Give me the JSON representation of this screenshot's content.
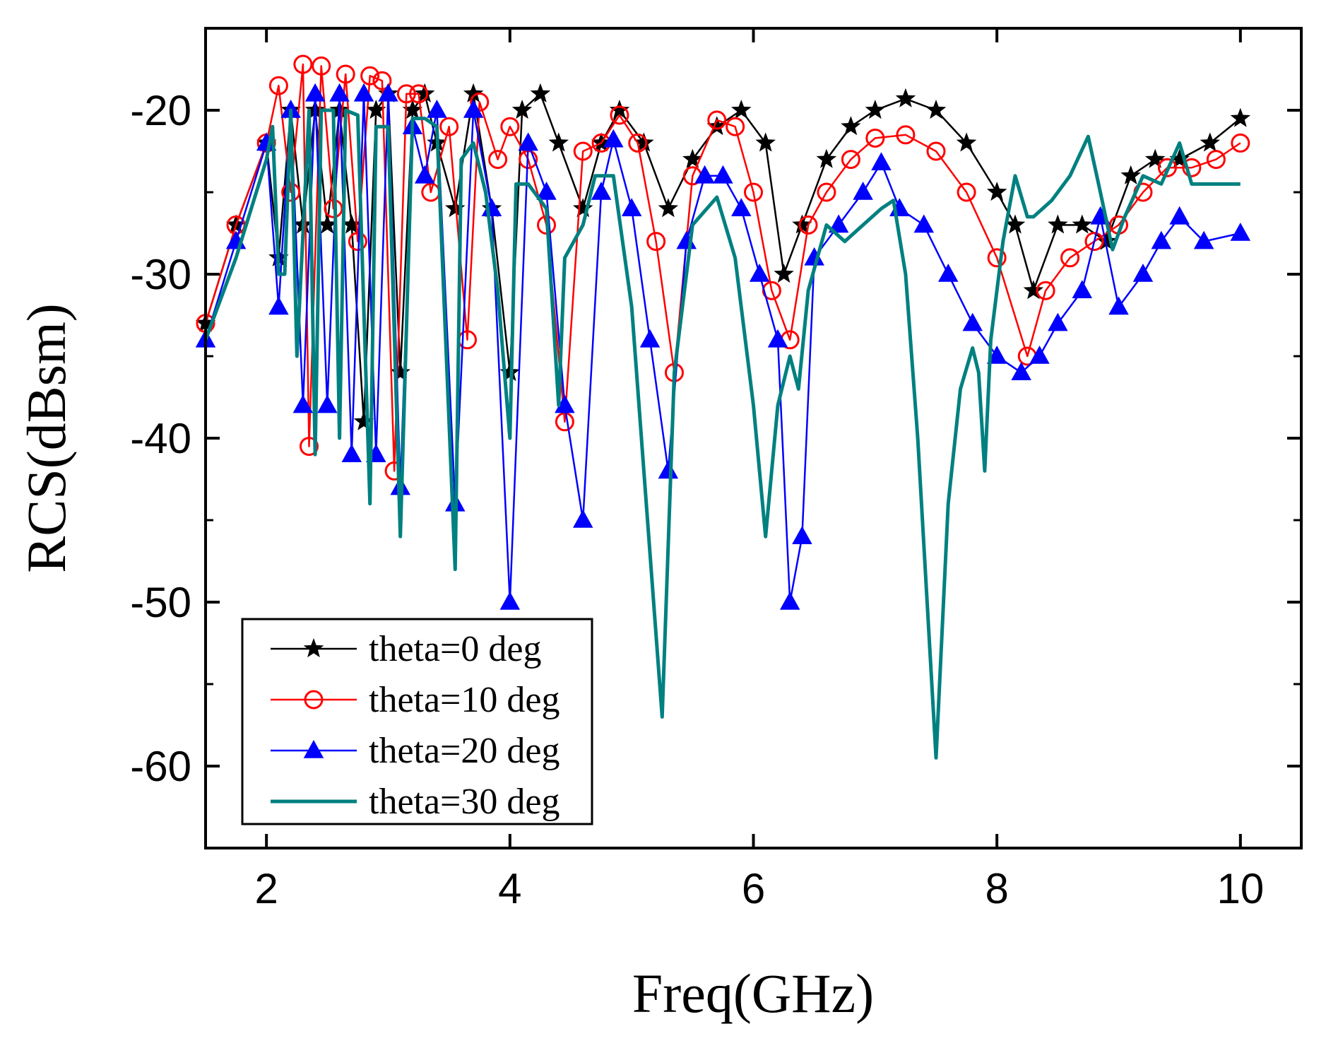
{
  "chart_data": {
    "type": "line",
    "title": "",
    "xlabel": "Freq(GHz)",
    "ylabel": "RCS(dBsm)",
    "xlim": [
      1.5,
      10.5
    ],
    "ylim": [
      -65,
      -15
    ],
    "xticks": [
      2,
      4,
      6,
      8,
      10
    ],
    "yticks": [
      -60,
      -50,
      -40,
      -30,
      -20
    ],
    "grid": false,
    "legend_position": "bottom-left",
    "series": [
      {
        "name": "theta=0 deg",
        "color": "#000000",
        "marker": "star",
        "x": [
          1.5,
          1.75,
          2.0,
          2.1,
          2.2,
          2.3,
          2.4,
          2.5,
          2.6,
          2.7,
          2.8,
          2.9,
          3.0,
          3.1,
          3.2,
          3.3,
          3.4,
          3.55,
          3.7,
          3.85,
          4.0,
          4.1,
          4.25,
          4.4,
          4.6,
          4.75,
          4.9,
          5.1,
          5.3,
          5.5,
          5.7,
          5.9,
          6.1,
          6.25,
          6.4,
          6.6,
          6.8,
          7.0,
          7.25,
          7.5,
          7.75,
          8.0,
          8.15,
          8.3,
          8.5,
          8.7,
          8.9,
          9.1,
          9.3,
          9.5,
          9.75,
          10.0
        ],
        "y": [
          -33,
          -27,
          -22,
          -29,
          -20,
          -27,
          -20,
          -27,
          -20,
          -27,
          -39,
          -20,
          -19,
          -36,
          -20,
          -19,
          -22,
          -26,
          -19,
          -26,
          -36,
          -20,
          -19,
          -22,
          -26,
          -22,
          -20,
          -22,
          -26,
          -23,
          -21,
          -20,
          -22,
          -30,
          -27,
          -23,
          -21,
          -20,
          -19.3,
          -20,
          -22,
          -25,
          -27,
          -31,
          -27,
          -27,
          -28,
          -24,
          -23,
          -23,
          -22,
          -20.5
        ]
      },
      {
        "name": "theta=10 deg",
        "color": "#ff0000",
        "marker": "circle",
        "x": [
          1.5,
          1.75,
          2.0,
          2.1,
          2.2,
          2.3,
          2.35,
          2.45,
          2.55,
          2.65,
          2.75,
          2.85,
          2.95,
          3.05,
          3.15,
          3.25,
          3.35,
          3.5,
          3.65,
          3.75,
          3.9,
          4.0,
          4.15,
          4.3,
          4.45,
          4.6,
          4.75,
          4.9,
          5.05,
          5.2,
          5.35,
          5.5,
          5.7,
          5.85,
          6.0,
          6.15,
          6.3,
          6.45,
          6.6,
          6.8,
          7.0,
          7.25,
          7.5,
          7.75,
          8.0,
          8.25,
          8.4,
          8.6,
          8.8,
          9.0,
          9.2,
          9.4,
          9.6,
          9.8,
          10.0
        ],
        "y": [
          -33,
          -27,
          -22,
          -18.5,
          -25,
          -17.2,
          -40.5,
          -17.3,
          -26,
          -17.8,
          -28,
          -17.9,
          -18.2,
          -42,
          -19,
          -19,
          -25,
          -21,
          -34,
          -19.5,
          -23,
          -21,
          -23,
          -27,
          -39,
          -22.5,
          -22,
          -20.3,
          -22,
          -28,
          -36,
          -24,
          -20.6,
          -21,
          -25,
          -31,
          -34,
          -27,
          -25,
          -23,
          -21.7,
          -21.5,
          -22.5,
          -25,
          -29,
          -35,
          -31,
          -29,
          -28,
          -27,
          -25,
          -23.5,
          -23.5,
          -23,
          -22
        ]
      },
      {
        "name": "theta=20 deg",
        "color": "#0000ff",
        "marker": "triangle",
        "x": [
          1.5,
          1.75,
          2.0,
          2.1,
          2.2,
          2.3,
          2.4,
          2.5,
          2.6,
          2.7,
          2.8,
          2.9,
          3.0,
          3.1,
          3.2,
          3.3,
          3.4,
          3.55,
          3.7,
          3.85,
          4.0,
          4.15,
          4.3,
          4.45,
          4.6,
          4.75,
          4.85,
          5.0,
          5.15,
          5.3,
          5.45,
          5.6,
          5.75,
          5.9,
          6.05,
          6.2,
          6.3,
          6.4,
          6.5,
          6.7,
          6.9,
          7.05,
          7.2,
          7.4,
          7.6,
          7.8,
          8.0,
          8.2,
          8.35,
          8.5,
          8.7,
          8.85,
          9.0,
          9.2,
          9.35,
          9.5,
          9.7,
          10.0
        ],
        "y": [
          -34,
          -28,
          -22,
          -32,
          -20,
          -38,
          -19,
          -38,
          -19,
          -41,
          -19,
          -41,
          -19,
          -43,
          -21,
          -24,
          -20,
          -44,
          -20,
          -26,
          -50,
          -22,
          -25,
          -38,
          -45,
          -25,
          -21.8,
          -26,
          -34,
          -42,
          -28,
          -24,
          -24,
          -26,
          -30,
          -34,
          -50,
          -46,
          -29,
          -27,
          -25,
          -23.2,
          -26,
          -27,
          -30,
          -33,
          -35,
          -36,
          -35,
          -33,
          -31,
          -26.5,
          -32,
          -30,
          -28,
          -26.5,
          -28,
          -27.5
        ]
      },
      {
        "name": "theta=30 deg",
        "color": "#008080",
        "marker": "none",
        "x": [
          1.5,
          1.75,
          2.0,
          2.05,
          2.1,
          2.15,
          2.2,
          2.25,
          2.35,
          2.4,
          2.45,
          2.55,
          2.6,
          2.65,
          2.75,
          2.85,
          2.9,
          3.0,
          3.1,
          3.2,
          3.3,
          3.4,
          3.55,
          3.6,
          3.7,
          3.8,
          3.9,
          4.0,
          4.05,
          4.15,
          4.3,
          4.4,
          4.45,
          4.6,
          4.7,
          4.85,
          5.0,
          5.1,
          5.25,
          5.35,
          5.5,
          5.7,
          5.85,
          6.0,
          6.1,
          6.2,
          6.3,
          6.37,
          6.45,
          6.6,
          6.75,
          6.9,
          7.05,
          7.15,
          7.25,
          7.35,
          7.5,
          7.6,
          7.7,
          7.8,
          7.85,
          7.9,
          7.95,
          8.05,
          8.15,
          8.25,
          8.3,
          8.45,
          8.6,
          8.75,
          8.85,
          8.95,
          9.05,
          9.2,
          9.35,
          9.5,
          9.6,
          9.75,
          10.0
        ],
        "y": [
          -34,
          -29,
          -23,
          -21,
          -30,
          -30,
          -20,
          -35,
          -20,
          -41,
          -20,
          -20,
          -40,
          -20,
          -20.3,
          -44,
          -21,
          -21,
          -46,
          -20.5,
          -20.5,
          -21,
          -48,
          -23,
          -22,
          -25,
          -31,
          -40,
          -24.5,
          -24.5,
          -26,
          -38,
          -29,
          -27,
          -24,
          -24,
          -32,
          -42,
          -57,
          -36,
          -27,
          -25.3,
          -29,
          -38,
          -46,
          -38,
          -35,
          -37,
          -31,
          -27,
          -28,
          -27,
          -26,
          -25.5,
          -30,
          -40,
          -59.5,
          -44,
          -37,
          -34.5,
          -36,
          -42,
          -34,
          -28,
          -24,
          -26.5,
          -26.5,
          -25.5,
          -24,
          -21.6,
          -25,
          -28.5,
          -26.5,
          -24,
          -24.5,
          -22,
          -24.5,
          -24.5,
          -24.5
        ]
      }
    ]
  }
}
